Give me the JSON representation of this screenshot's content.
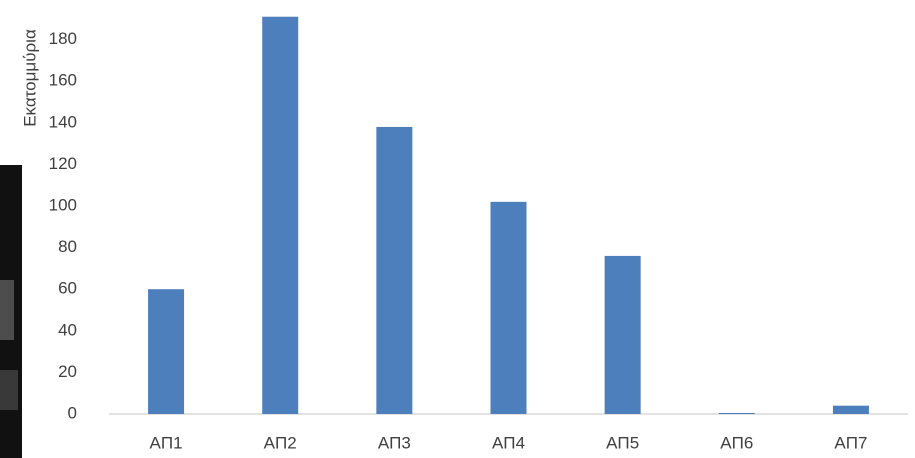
{
  "chart_data": {
    "type": "bar",
    "y_label": "Εκατομμύρια",
    "categories": [
      "ΑΠ1",
      "ΑΠ2",
      "ΑΠ3",
      "ΑΠ4",
      "ΑΠ5",
      "ΑΠ6",
      "ΑΠ7"
    ],
    "values": [
      60,
      191,
      138,
      102,
      76,
      0.5,
      4
    ],
    "color": "#4e7fbd",
    "ylim": [
      0,
      200
    ],
    "yticks": [
      0,
      20,
      40,
      60,
      80,
      100,
      120,
      140,
      160,
      180
    ],
    "grid": false
  }
}
